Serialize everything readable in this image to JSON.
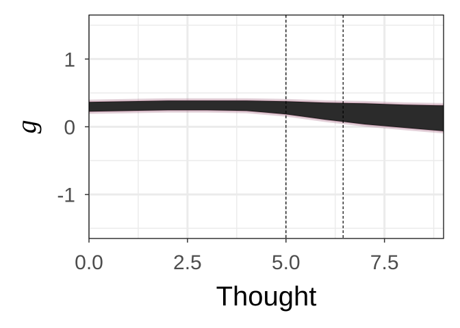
{
  "chart_data": {
    "type": "area",
    "xlabel": "Thought",
    "ylabel": "g",
    "xlim": [
      0,
      9
    ],
    "ylim": [
      -1.65,
      1.65
    ],
    "x_ticks": [
      0,
      2.5,
      5,
      7.5
    ],
    "x_tick_labels": [
      "0.0",
      "2.5",
      "5.0",
      "7.5"
    ],
    "x_minor_ticks": [
      1.25,
      3.75,
      6.25,
      8.75
    ],
    "y_ticks": [
      -1,
      0,
      1
    ],
    "y_tick_labels": [
      "-1",
      "0",
      "1"
    ],
    "y_minor_ticks": [
      -1.5,
      -0.5,
      0.5,
      1.5
    ],
    "grid": true,
    "vlines": [
      5.0,
      6.45
    ],
    "band": {
      "x": [
        0,
        1,
        2,
        3,
        4,
        5,
        6,
        6.45,
        7,
        8,
        9
      ],
      "upper": [
        0.36,
        0.37,
        0.38,
        0.38,
        0.38,
        0.37,
        0.35,
        0.345,
        0.34,
        0.32,
        0.31
      ],
      "lower": [
        0.23,
        0.24,
        0.25,
        0.25,
        0.24,
        0.19,
        0.11,
        0.08,
        0.04,
        -0.01,
        -0.06
      ]
    },
    "colors": {
      "band": "#2b2b2b",
      "band_glow": "#b07a92",
      "grid": "#ebebeb",
      "vline": "#000000",
      "border": "#000000"
    }
  }
}
